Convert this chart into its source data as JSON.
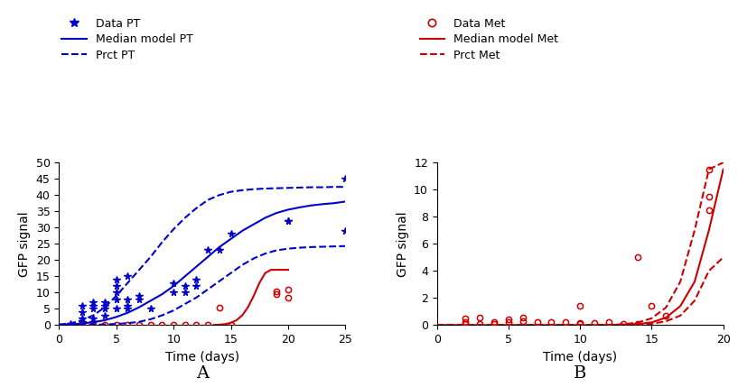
{
  "blue_color": "#0000CC",
  "red_color": "#CC0000",
  "bg_color": "#FFFFFF",
  "pt_data_x": [
    1,
    2,
    2,
    2,
    2,
    3,
    3,
    3,
    3,
    3,
    4,
    4,
    4,
    4,
    5,
    5,
    5,
    5,
    5,
    6,
    6,
    6,
    6,
    7,
    7,
    8,
    10,
    10,
    11,
    11,
    12,
    12,
    13,
    14,
    15,
    20,
    20,
    25,
    25
  ],
  "pt_data_y": [
    0.5,
    1,
    2,
    4,
    6,
    1,
    2,
    5,
    6,
    7,
    3,
    5,
    6,
    7,
    5,
    8,
    10,
    12,
    14,
    5,
    6,
    8,
    15,
    8,
    9,
    5,
    10,
    13,
    10,
    12,
    12,
    14,
    23,
    23,
    28,
    32,
    32,
    29,
    45
  ],
  "met_data_A_x": [
    2,
    3,
    4,
    5,
    6,
    7,
    8,
    9,
    10,
    11,
    12,
    13,
    14,
    15,
    19,
    19,
    20,
    20
  ],
  "met_data_A_y": [
    0.05,
    0.05,
    0.05,
    0.05,
    0.05,
    0.05,
    0.05,
    0.05,
    0.05,
    0.05,
    0.05,
    0.2,
    5.5,
    0.05,
    9.5,
    10.5,
    8.5,
    11.0
  ],
  "met_data_B_x": [
    2,
    2,
    2,
    3,
    3,
    4,
    4,
    5,
    5,
    6,
    6,
    7,
    8,
    9,
    10,
    10,
    10,
    11,
    12,
    13,
    14,
    14,
    15,
    16,
    19,
    19,
    19
  ],
  "met_data_B_y": [
    0.1,
    0.2,
    0.5,
    0.1,
    0.55,
    0.1,
    0.2,
    0.25,
    0.4,
    0.3,
    0.55,
    0.2,
    0.2,
    0.25,
    0.1,
    0.15,
    1.4,
    0.15,
    0.25,
    0.1,
    0.1,
    5.0,
    1.4,
    0.7,
    9.5,
    11.5,
    8.5
  ],
  "pt_median_t": [
    0,
    1,
    2,
    3,
    4,
    5,
    6,
    7,
    8,
    9,
    10,
    11,
    12,
    13,
    14,
    15,
    16,
    17,
    18,
    19,
    20,
    21,
    22,
    23,
    24,
    25
  ],
  "pt_median_y": [
    0.1,
    0.2,
    0.5,
    0.9,
    1.5,
    2.5,
    3.8,
    5.5,
    7.5,
    9.5,
    12.0,
    15.0,
    18.0,
    21.0,
    24.0,
    26.5,
    29.0,
    31.0,
    33.0,
    34.5,
    35.5,
    36.2,
    36.8,
    37.2,
    37.5,
    38.0
  ],
  "pt_upper_t": [
    0,
    1,
    2,
    3,
    4,
    5,
    6,
    7,
    8,
    9,
    10,
    11,
    12,
    13,
    14,
    15,
    16,
    17,
    18,
    19,
    20,
    21,
    22,
    23,
    24,
    25
  ],
  "pt_upper_y": [
    0.2,
    0.5,
    1.5,
    3.0,
    5.5,
    9.0,
    13.0,
    17.0,
    21.0,
    25.5,
    29.5,
    33.0,
    36.0,
    38.5,
    40.0,
    41.0,
    41.5,
    41.8,
    42.0,
    42.1,
    42.2,
    42.3,
    42.4,
    42.4,
    42.5,
    42.5
  ],
  "pt_lower_t": [
    0,
    1,
    2,
    3,
    4,
    5,
    6,
    7,
    8,
    9,
    10,
    11,
    12,
    13,
    14,
    15,
    16,
    17,
    18,
    19,
    20,
    21,
    22,
    23,
    24,
    25
  ],
  "pt_lower_y": [
    0.02,
    0.05,
    0.08,
    0.12,
    0.2,
    0.35,
    0.6,
    1.0,
    1.8,
    3.0,
    4.5,
    6.5,
    8.5,
    11.0,
    13.5,
    16.0,
    18.5,
    20.5,
    22.0,
    23.0,
    23.5,
    23.8,
    24.0,
    24.1,
    24.2,
    24.3
  ],
  "met_A_median_t": [
    13.5,
    14.0,
    14.5,
    15.0,
    15.5,
    16.0,
    16.5,
    17.0,
    17.5,
    18.0,
    18.5,
    19.0,
    19.5,
    20.0
  ],
  "met_A_median_y": [
    0.05,
    0.12,
    0.3,
    0.7,
    1.5,
    3.0,
    5.5,
    9.0,
    13.0,
    16.0,
    17.0,
    17.0,
    17.0,
    17.0
  ],
  "met_median_t": [
    0,
    2,
    4,
    6,
    8,
    10,
    11,
    12,
    13,
    14,
    15,
    16,
    17,
    18,
    19,
    20
  ],
  "met_median_y": [
    0,
    0,
    0,
    0,
    0,
    0,
    0,
    0.01,
    0.03,
    0.08,
    0.2,
    0.55,
    1.4,
    3.2,
    7.0,
    11.5
  ],
  "met_upper_t": [
    0,
    2,
    4,
    6,
    8,
    10,
    11,
    12,
    13,
    14,
    15,
    16,
    17,
    18,
    19,
    20
  ],
  "met_upper_y": [
    0,
    0,
    0,
    0,
    0,
    0,
    0,
    0.02,
    0.06,
    0.18,
    0.5,
    1.3,
    3.2,
    7.0,
    11.5,
    12.0
  ],
  "met_lower_t": [
    0,
    2,
    4,
    6,
    8,
    10,
    11,
    12,
    13,
    14,
    15,
    16,
    17,
    18,
    19,
    20
  ],
  "met_lower_y": [
    0,
    0,
    0,
    0,
    0,
    0,
    0,
    0.005,
    0.015,
    0.04,
    0.1,
    0.28,
    0.7,
    1.8,
    4.0,
    5.0
  ],
  "panel_A_xlim": [
    0,
    25
  ],
  "panel_A_ylim": [
    0,
    50
  ],
  "panel_A_xticks": [
    0,
    5,
    10,
    15,
    20,
    25
  ],
  "panel_A_yticks": [
    0,
    5,
    10,
    15,
    20,
    25,
    30,
    35,
    40,
    45,
    50
  ],
  "panel_B_xlim": [
    0,
    20
  ],
  "panel_B_ylim": [
    0,
    12
  ],
  "panel_B_xticks": [
    0,
    5,
    10,
    15,
    20
  ],
  "panel_B_yticks": [
    0,
    2,
    4,
    6,
    8,
    10,
    12
  ],
  "xlabel": "Time (days)",
  "ylabel": "GFP signal",
  "legend_A_labels": [
    "Data PT",
    "Median model PT",
    "Prct PT"
  ],
  "legend_B_labels": [
    "Data Met",
    "Median model Met",
    "Prct Met"
  ],
  "label_A": "A",
  "label_B": "B"
}
